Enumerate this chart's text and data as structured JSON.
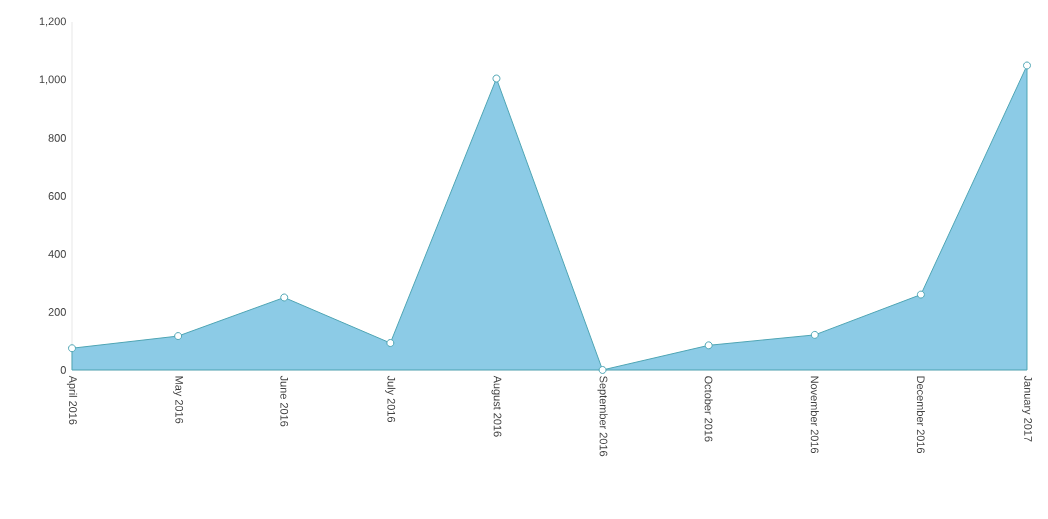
{
  "chart_data": {
    "type": "area",
    "categories": [
      "April 2016",
      "May 2016",
      "June 2016",
      "July 2016",
      "August 2016",
      "September 2016",
      "October 2016",
      "November 2016",
      "December 2016",
      "January 2017"
    ],
    "series": [
      {
        "color": "#8ccbe6",
        "values": [
          75,
          117,
          250,
          93,
          1005,
          0,
          85,
          121,
          260,
          1050
        ]
      }
    ],
    "ylim": [
      0,
      1200
    ],
    "yticks": [
      0,
      200,
      400,
      600,
      800,
      {
        "value": 1000,
        "label": "1,000"
      },
      {
        "value": 1200,
        "label": "1,200"
      }
    ],
    "marker": "circle",
    "grid": false
  }
}
